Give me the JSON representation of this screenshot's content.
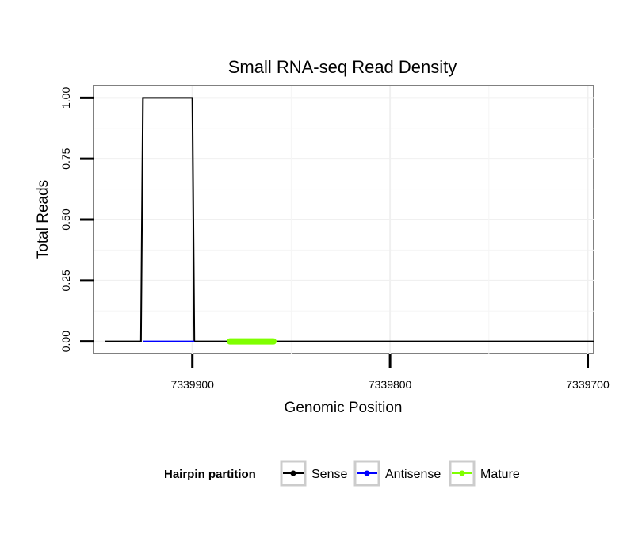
{
  "chart_data": {
    "type": "line",
    "title": "Small RNA-seq Read Density",
    "xlabel": "Genomic Position",
    "ylabel": "Total Reads",
    "x_reversed": true,
    "xlim": [
      7339950,
      7339697
    ],
    "ylim": [
      -0.05,
      1.05
    ],
    "x_ticks": [
      7339900,
      7339800,
      7339700
    ],
    "x_tick_labels": [
      "7339900",
      "7339800",
      "7339700"
    ],
    "y_ticks": [
      0.0,
      0.25,
      0.5,
      0.75,
      1.0
    ],
    "y_tick_labels": [
      "0.00",
      "0.25",
      "0.50",
      "0.75",
      "1.00"
    ],
    "grid": true,
    "legend_position": "bottom",
    "legend_title": "Hairpin partition",
    "series": [
      {
        "name": "Sense",
        "color": "#000000",
        "x": [
          7339944,
          7339926,
          7339925,
          7339900,
          7339899,
          7339697
        ],
        "y": [
          0,
          0,
          1,
          1,
          0,
          0
        ]
      },
      {
        "name": "Antisense",
        "color": "#0000ff",
        "x": [
          7339925,
          7339899
        ],
        "y": [
          0,
          0
        ]
      },
      {
        "name": "Mature",
        "color": "#7fff00",
        "x": [
          7339881,
          7339859
        ],
        "y": [
          0,
          0
        ]
      }
    ]
  }
}
